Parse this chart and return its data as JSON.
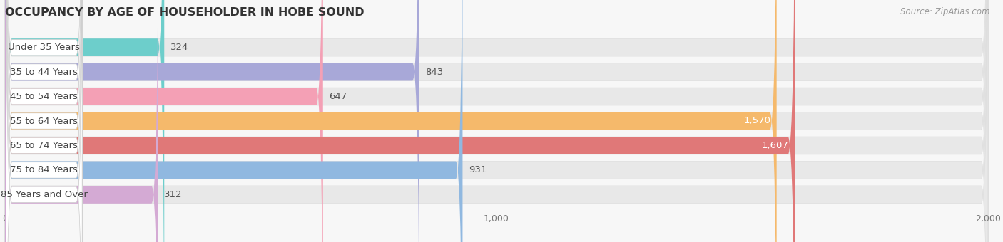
{
  "title": "OCCUPANCY BY AGE OF HOUSEHOLDER IN HOBE SOUND",
  "source": "Source: ZipAtlas.com",
  "categories": [
    "Under 35 Years",
    "35 to 44 Years",
    "45 to 54 Years",
    "55 to 64 Years",
    "65 to 74 Years",
    "75 to 84 Years",
    "85 Years and Over"
  ],
  "values": [
    324,
    843,
    647,
    1570,
    1607,
    931,
    312
  ],
  "bar_colors": [
    "#6dcecb",
    "#a8a8d8",
    "#f4a0b5",
    "#f5b96b",
    "#e07878",
    "#90b8e0",
    "#d4aad4"
  ],
  "label_colors": [
    "#555555",
    "#555555",
    "#555555",
    "#ffffff",
    "#ffffff",
    "#555555",
    "#555555"
  ],
  "value_inside": [
    false,
    false,
    false,
    true,
    true,
    false,
    false
  ],
  "xlim": [
    0,
    2000
  ],
  "xticks": [
    0,
    1000,
    2000
  ],
  "background_color": "#f7f7f7",
  "bar_background": "#e8e8e8",
  "title_fontsize": 11.5,
  "bar_height": 0.72,
  "value_fontsize": 9.5,
  "label_fontsize": 9.5
}
